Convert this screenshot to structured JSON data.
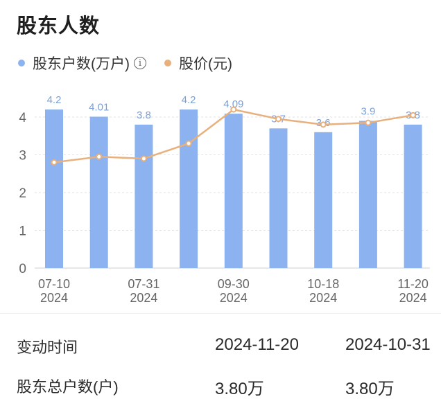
{
  "page": {
    "title": "股东人数"
  },
  "legend": {
    "holders_label": "股东户数(万户)",
    "price_label": "股价(元)",
    "holders_color": "#8cb2ef",
    "price_color": "#e8b07c",
    "info_icon": "info-icon"
  },
  "chart_data": {
    "type": "bar",
    "title": "",
    "xlabel": "",
    "ylabel": "",
    "ylim": [
      0,
      4.6
    ],
    "yticks": [
      0,
      1,
      2,
      3,
      4
    ],
    "grid": true,
    "legend_position": "top-left",
    "categories": [
      "07-10 2024",
      "",
      "07-31 2024",
      "",
      "09-30 2024",
      "",
      "10-18 2024",
      "",
      "11-20 2024"
    ],
    "x_tick_labels": [
      {
        "index": 0,
        "line1": "07-10",
        "line2": "2024"
      },
      {
        "index": 2,
        "line1": "07-31",
        "line2": "2024"
      },
      {
        "index": 4,
        "line1": "09-30",
        "line2": "2024"
      },
      {
        "index": 6,
        "line1": "10-18",
        "line2": "2024"
      },
      {
        "index": 8,
        "line1": "11-20",
        "line2": "2024"
      }
    ],
    "series": [
      {
        "name": "股东户数(万户)",
        "type": "bar",
        "color": "#8cb2ef",
        "values": [
          4.2,
          4.01,
          3.8,
          4.2,
          4.09,
          3.7,
          3.6,
          3.9,
          3.8
        ],
        "data_labels": [
          "4.2",
          "4.01",
          "3.8",
          "4.2",
          "4.09",
          "3.7",
          "3.6",
          "3.9",
          "3.8"
        ]
      },
      {
        "name": "股价(元)",
        "type": "line",
        "color": "#e8b07c",
        "values": [
          2.8,
          2.95,
          2.9,
          3.3,
          4.2,
          3.95,
          3.8,
          3.85,
          4.05
        ]
      }
    ]
  },
  "table": {
    "rows": [
      {
        "label": "变动时间",
        "values": [
          "2024-11-20",
          "2024-10-31"
        ]
      },
      {
        "label": "股东总户数(户)",
        "values": [
          "3.80万",
          "3.80万"
        ]
      }
    ]
  }
}
